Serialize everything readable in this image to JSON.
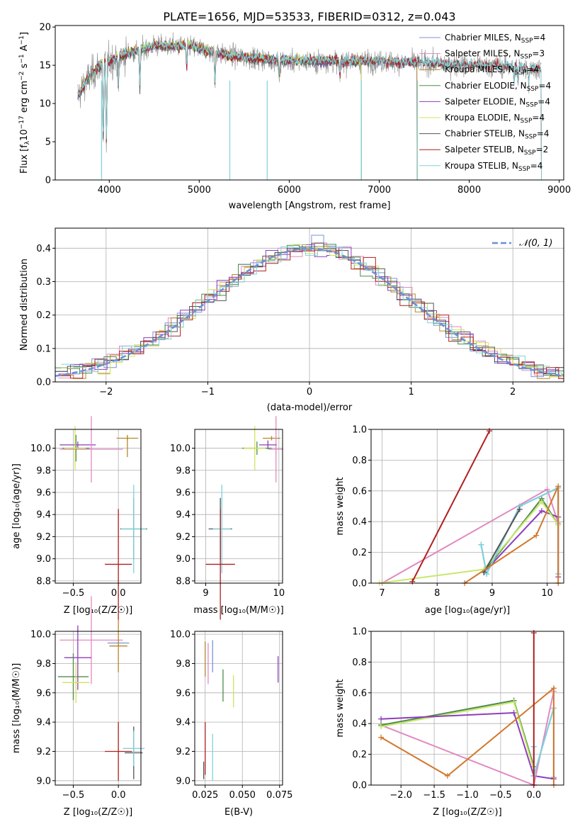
{
  "title": "PLATE=1656, MJD=53533, FIBERID=0312, z=0.043",
  "colors": {
    "Chabrier MILES": "#7b93d6",
    "Salpeter MILES": "#e08ac2",
    "Kroupa MILES": "#b8872e",
    "Chabrier ELODIE": "#4f8a4f",
    "Salpeter ELODIE": "#8e3dbb",
    "Kroupa ELODIE": "#d4e15a",
    "Chabrier STELIB": "#555555",
    "Salpeter STELIB": "#b11f1f",
    "Kroupa STELIB": "#7ed3dc",
    "mass_line_kroupa_miles": "#d2782e",
    "model_line_kroupa_elodie": "#c8e86a",
    "normal_curve": "#6a8fd8",
    "grid": "#b0b0b0"
  },
  "chart_data": [
    {
      "id": "spectrum",
      "type": "line",
      "xlabel": "wavelength [Angstrom, rest frame]",
      "ylabel_parts": [
        "Flux [f",
        "λ",
        "10",
        "−17",
        " erg cm",
        "−2",
        " s",
        "−1",
        " A",
        "−1",
        "]"
      ],
      "xlim": [
        3400,
        9050
      ],
      "ylim": [
        0,
        20.2
      ],
      "xticks": [
        "4000",
        "5000",
        "6000",
        "7000",
        "8000",
        "9000"
      ],
      "yticks": [
        "0",
        "5",
        "10",
        "15",
        "20"
      ],
      "legend_loc": "upper right",
      "legend": [
        [
          "Chabrier MILES, N",
          "SSP",
          "=4"
        ],
        [
          "Salpeter MILES, N",
          "SSP",
          "=3"
        ],
        [
          "Kroupa MILES, N",
          "SSP",
          "=4"
        ],
        [
          "Chabrier ELODIE, N",
          "SSP",
          "=4"
        ],
        [
          "Salpeter ELODIE, N",
          "SSP",
          "=4"
        ],
        [
          "Kroupa ELODIE, N",
          "SSP",
          "=4"
        ],
        [
          "Chabrier STELIB, N",
          "SSP",
          "=4"
        ],
        [
          "Salpeter STELIB, N",
          "SSP",
          "=2"
        ],
        [
          "Kroupa STELIB, N",
          "SSP",
          "=4"
        ]
      ],
      "observed_range": [
        3650,
        8800
      ],
      "model_ranges": {
        "MILES": [
          3650,
          7420
        ],
        "ELODIE": [
          3650,
          6800
        ],
        "STELIB": [
          3650,
          8800
        ]
      },
      "continuum": [
        [
          3650,
          11
        ],
        [
          3750,
          13
        ],
        [
          3900,
          15
        ],
        [
          4000,
          15.5
        ],
        [
          4200,
          16.5
        ],
        [
          4500,
          17.5
        ],
        [
          4900,
          17.5
        ],
        [
          5200,
          16.5
        ],
        [
          5500,
          16
        ],
        [
          6000,
          15.5
        ],
        [
          6500,
          15.5
        ],
        [
          7000,
          15.5
        ],
        [
          7400,
          15.3
        ],
        [
          8000,
          15
        ],
        [
          8500,
          14.8
        ],
        [
          8800,
          14.5
        ]
      ],
      "dips": [
        [
          3934,
          4
        ],
        [
          3969,
          4
        ],
        [
          4101,
          12
        ],
        [
          4340,
          12
        ],
        [
          4861,
          14.5
        ],
        [
          5175,
          12.5
        ],
        [
          5890,
          13
        ],
        [
          6563,
          13.5
        ],
        [
          8498,
          12.5
        ],
        [
          8542,
          12.5
        ],
        [
          8662,
          12.5
        ]
      ],
      "deep_lines": [
        [
          3915,
          0
        ],
        [
          5340,
          0
        ],
        [
          5755,
          0
        ],
        [
          6800,
          0
        ],
        [
          7425,
          0
        ]
      ]
    },
    {
      "id": "residuals",
      "type": "step",
      "xlabel": "(data-model)/error",
      "ylabel": "Normed distribution",
      "xlim": [
        -2.5,
        2.5
      ],
      "ylim": [
        0,
        0.46
      ],
      "xticks": [
        "−2",
        "−1",
        "0",
        "1",
        "2"
      ],
      "yticks": [
        "0.0",
        "0.1",
        "0.2",
        "0.3",
        "0.4"
      ],
      "legend": [
        "𝒩(0, 1)"
      ],
      "bin_width": 0.12,
      "curve": "normal(0,1)"
    },
    {
      "id": "age_vs_Z",
      "type": "errorbar",
      "xlabel": "Z [log₁₀(Z/Z☉)]",
      "ylabel": "age  [log₁₀(age/yr)]",
      "xlim": [
        -0.7,
        0.25
      ],
      "ylim": [
        8.78,
        10.17
      ],
      "xticks": [
        "−0.5",
        "0.0"
      ],
      "xtick_values": [
        -0.5,
        0.0
      ],
      "yticks": [
        "8.8",
        "9.0",
        "9.2",
        "9.4",
        "9.6",
        "9.8",
        "10.0"
      ],
      "ytick_values": [
        8.8,
        9.0,
        9.2,
        9.4,
        9.6,
        9.8,
        10.0
      ],
      "points": [
        {
          "c": "Salpeter ELODIE",
          "x": -0.45,
          "xe": 0.2,
          "y": 10.03,
          "ye": 0.03
        },
        {
          "c": "Kroupa MILES",
          "x": 0.1,
          "xe": 0.12,
          "y": 10.09,
          "ye": 0.02
        },
        {
          "c": "Salpeter MILES",
          "x": -0.3,
          "xe": 0.35,
          "y": 9.99,
          "ye": 0.3
        },
        {
          "c": "Chabrier ELODIE",
          "x": -0.47,
          "xe": 0.15,
          "y": 10.0,
          "ye": 0.12
        },
        {
          "c": "Kroupa ELODIE",
          "x": -0.48,
          "xe": 0.12,
          "y": 10.0,
          "ye": 0.2
        },
        {
          "c": "Chabrier STELIB",
          "x": 0.17,
          "xe": 0.15,
          "y": 9.27,
          "ye": 0.28
        },
        {
          "c": "Kroupa STELIB",
          "x": 0.17,
          "xe": 0.14,
          "y": 9.27,
          "ye": 0.4
        },
        {
          "c": "Salpeter STELIB",
          "x": 0.0,
          "xe": 0.15,
          "y": 8.95,
          "ye": 0.5
        },
        {
          "c": "Kroupa MILES",
          "x": 0.1,
          "xe": 0.0,
          "y": 10.02,
          "ye": 0.1
        }
      ]
    },
    {
      "id": "age_vs_mass",
      "type": "errorbar",
      "xlabel": "mass [log₁₀(M/M☉)]",
      "ylabel": "",
      "xlim": [
        8.85,
        10.05
      ],
      "ylim": [
        8.78,
        10.17
      ],
      "xticks": [
        "9",
        "10"
      ],
      "xtick_values": [
        9,
        10
      ],
      "yticks": [
        "8.8",
        "9.0",
        "9.2",
        "9.4",
        "9.6",
        "9.8",
        "10.0"
      ],
      "ytick_values": [
        8.8,
        9.0,
        9.2,
        9.4,
        9.6,
        9.8,
        10.0
      ],
      "points": [
        {
          "c": "Kroupa MILES",
          "x": 9.9,
          "xe": 0.12,
          "y": 10.09,
          "ye": 0.02
        },
        {
          "c": "Salpeter MILES",
          "x": 9.96,
          "xe": 0.1,
          "y": 9.99,
          "ye": 0.3
        },
        {
          "c": "Salpeter ELODIE",
          "x": 9.85,
          "xe": 0.12,
          "y": 10.03,
          "ye": 0.04
        },
        {
          "c": "Chabrier ELODIE",
          "x": 9.7,
          "xe": 0.2,
          "y": 10.0,
          "ye": 0.06
        },
        {
          "c": "Kroupa ELODIE",
          "x": 9.67,
          "xe": 0.15,
          "y": 10.0,
          "ye": 0.2
        },
        {
          "c": "Chabrier STELIB",
          "x": 9.2,
          "xe": 0.16,
          "y": 9.27,
          "ye": 0.28
        },
        {
          "c": "Kroupa STELIB",
          "x": 9.22,
          "xe": 0.12,
          "y": 9.27,
          "ye": 0.4
        },
        {
          "c": "Salpeter STELIB",
          "x": 9.2,
          "xe": 0.2,
          "y": 8.95,
          "ye": 0.5
        }
      ]
    },
    {
      "id": "weight_vs_age",
      "type": "line",
      "xlabel": "age  [log₁₀(age/yr)]",
      "ylabel": "mass weight",
      "xlim": [
        6.8,
        10.3
      ],
      "ylim": [
        0,
        1.0
      ],
      "xticks": [
        "7",
        "8",
        "9",
        "10"
      ],
      "xtick_values": [
        7,
        8,
        9,
        10
      ],
      "yticks": [
        "0.0",
        "0.2",
        "0.4",
        "0.6",
        "0.8",
        "1.0"
      ],
      "ytick_values": [
        0,
        0.2,
        0.4,
        0.6,
        0.8,
        1.0
      ],
      "series": [
        {
          "c": "Salpeter MILES",
          "x": [
            7.0,
            10.0,
            10.2
          ],
          "y": [
            0.0,
            0.61,
            0.39
          ]
        },
        {
          "c": "Chabrier MILES",
          "x": [
            8.8,
            8.9,
            9.5,
            10.2,
            10.2
          ],
          "y": [
            0.25,
            0.06,
            0.5,
            0.62,
            0.06
          ]
        },
        {
          "c": "Salpeter ELODIE",
          "x": [
            8.85,
            9.9,
            10.2,
            10.2
          ],
          "y": [
            0.07,
            0.47,
            0.43,
            0.04
          ]
        },
        {
          "c": "Chabrier ELODIE",
          "x": [
            8.85,
            9.9,
            10.2
          ],
          "y": [
            0.07,
            0.55,
            0.38
          ]
        },
        {
          "c": "Kroupa ELODIE",
          "x": [
            6.95,
            8.85,
            9.9,
            10.2
          ],
          "y": [
            0.0,
            0.09,
            0.53,
            0.38
          ]
        },
        {
          "c": "Kroupa STELIB",
          "x": [
            8.8,
            8.9,
            9.5,
            10.2,
            10.2
          ],
          "y": [
            0.25,
            0.06,
            0.5,
            0.62,
            0.06
          ]
        },
        {
          "c": "Chabrier STELIB",
          "x": [
            8.85,
            9.5
          ],
          "y": [
            0.07,
            0.48
          ]
        },
        {
          "c": "Kroupa MILES",
          "x": [
            8.5,
            9.8,
            10.2,
            10.2
          ],
          "y": [
            0.0,
            0.31,
            0.63,
            0.0
          ]
        },
        {
          "c": "Salpeter STELIB",
          "x": [
            7.55,
            8.95
          ],
          "y": [
            0.01,
            0.99
          ]
        }
      ]
    },
    {
      "id": "mass_vs_Z",
      "type": "errorbar",
      "xlabel": "Z [log₁₀(Z/Z☉)]",
      "ylabel": "mass [log₁₀(M/M☉)]",
      "xlim": [
        -0.7,
        0.25
      ],
      "ylim": [
        8.97,
        10.02
      ],
      "xticks": [
        "−0.5",
        "0.0"
      ],
      "xtick_values": [
        -0.5,
        0.0
      ],
      "yticks": [
        "9.0",
        "9.2",
        "9.4",
        "9.6",
        "9.8",
        "10.0"
      ],
      "ytick_values": [
        9.0,
        9.2,
        9.4,
        9.6,
        9.8,
        10.0
      ],
      "points": [
        {
          "c": "Salpeter MILES",
          "x": -0.3,
          "xe": 0.35,
          "y": 9.96,
          "ye": 0.3
        },
        {
          "c": "Chabrier MILES",
          "x": 0.0,
          "xe": 0.12,
          "y": 9.94,
          "ye": 0.02
        },
        {
          "c": "Kroupa MILES",
          "x": 0.0,
          "xe": 0.1,
          "y": 9.92,
          "ye": 0.18
        },
        {
          "c": "Salpeter ELODIE",
          "x": -0.45,
          "xe": 0.15,
          "y": 9.84,
          "ye": 0.22
        },
        {
          "c": "Chabrier ELODIE",
          "x": -0.5,
          "xe": 0.17,
          "y": 9.71,
          "ye": 0.16
        },
        {
          "c": "Kroupa ELODIE",
          "x": -0.47,
          "xe": 0.15,
          "y": 9.67,
          "ye": 0.14
        },
        {
          "c": "Salpeter STELIB",
          "x": 0.0,
          "xe": 0.15,
          "y": 9.2,
          "ye": 0.2
        },
        {
          "c": "Chabrier STELIB",
          "x": 0.17,
          "xe": 0.1,
          "y": 9.19,
          "ye": 0.18
        },
        {
          "c": "Kroupa STELIB",
          "x": 0.17,
          "xe": 0.12,
          "y": 9.22,
          "ye": 0.12
        }
      ]
    },
    {
      "id": "mass_vs_ebv",
      "type": "errorbar",
      "xlabel": "E(B-V)",
      "ylabel": "",
      "xlim": [
        0.018,
        0.077
      ],
      "ylim": [
        8.97,
        10.02
      ],
      "xticks": [
        "0.025",
        "0.050",
        "0.075"
      ],
      "xtick_values": [
        0.025,
        0.05,
        0.075
      ],
      "yticks": [
        "9.0",
        "9.2",
        "9.4",
        "9.6",
        "9.8",
        "10.0"
      ],
      "ytick_values": [
        9.0,
        9.2,
        9.4,
        9.6,
        9.8,
        10.0
      ],
      "points": [
        {
          "c": "Kroupa MILES",
          "x": 0.025,
          "xe": 0,
          "y": 9.83,
          "ye": 0.12
        },
        {
          "c": "Salpeter MILES",
          "x": 0.027,
          "xe": 0,
          "y": 9.8,
          "ye": 0.14
        },
        {
          "c": "Chabrier MILES",
          "x": 0.03,
          "xe": 0,
          "y": 9.85,
          "ye": 0.11
        },
        {
          "c": "Chabrier ELODIE",
          "x": 0.037,
          "xe": 0,
          "y": 9.65,
          "ye": 0.11
        },
        {
          "c": "Kroupa ELODIE",
          "x": 0.044,
          "xe": 0,
          "y": 9.61,
          "ye": 0.11
        },
        {
          "c": "Salpeter ELODIE",
          "x": 0.074,
          "xe": 0,
          "y": 9.76,
          "ye": 0.09
        },
        {
          "c": "Chabrier STELIB",
          "x": 0.024,
          "xe": 0,
          "y": 9.07,
          "ye": 0.06
        },
        {
          "c": "Salpeter STELIB",
          "x": 0.025,
          "xe": 0,
          "y": 9.22,
          "ye": 0.18
        },
        {
          "c": "Kroupa STELIB",
          "x": 0.03,
          "xe": 0,
          "y": 9.16,
          "ye": 0.16
        }
      ]
    },
    {
      "id": "weight_vs_Z",
      "type": "line",
      "xlabel": "Z [log₁₀(Z/Z☉)]",
      "ylabel": "mass weight",
      "xlim": [
        -2.45,
        0.45
      ],
      "ylim": [
        0,
        1.0
      ],
      "xticks": [
        "−2.0",
        "−1.5",
        "−1.0",
        "−0.5",
        "0.0"
      ],
      "xtick_values": [
        -2.0,
        -1.5,
        -1.0,
        -0.5,
        0.0
      ],
      "yticks": [
        "0.0",
        "0.2",
        "0.4",
        "0.6",
        "0.8",
        "1.0"
      ],
      "ytick_values": [
        0,
        0.2,
        0.4,
        0.6,
        0.8,
        1.0
      ],
      "series": [
        {
          "c": "Salpeter MILES",
          "x": [
            -2.3,
            0.0,
            0.3
          ],
          "y": [
            0.39,
            0.0,
            0.61
          ]
        },
        {
          "c": "Chabrier ELODIE",
          "x": [
            -2.3,
            -0.3,
            0.0
          ],
          "y": [
            0.39,
            0.55,
            0.12
          ]
        },
        {
          "c": "Kroupa ELODIE",
          "x": [
            -2.3,
            -0.3,
            0.0
          ],
          "y": [
            0.38,
            0.54,
            0.1
          ]
        },
        {
          "c": "Salpeter ELODIE",
          "x": [
            -2.3,
            -0.3,
            0.0,
            0.3
          ],
          "y": [
            0.43,
            0.47,
            0.06,
            0.04
          ]
        },
        {
          "c": "Chabrier MILES",
          "x": [
            0.0,
            0.0,
            0.3,
            0.3
          ],
          "y": [
            0.25,
            0.06,
            0.5,
            0.05
          ]
        },
        {
          "c": "Kroupa STELIB",
          "x": [
            0.0,
            0.0,
            0.3
          ],
          "y": [
            0.25,
            0.06,
            0.5
          ]
        },
        {
          "c": "Kroupa MILES",
          "x": [
            -2.3,
            -1.3,
            0.3,
            0.3
          ],
          "y": [
            0.31,
            0.06,
            0.63,
            0.0
          ]
        },
        {
          "c": "Salpeter STELIB",
          "x": [
            0.0,
            0.0
          ],
          "y": [
            0.0,
            0.99
          ]
        }
      ]
    }
  ]
}
